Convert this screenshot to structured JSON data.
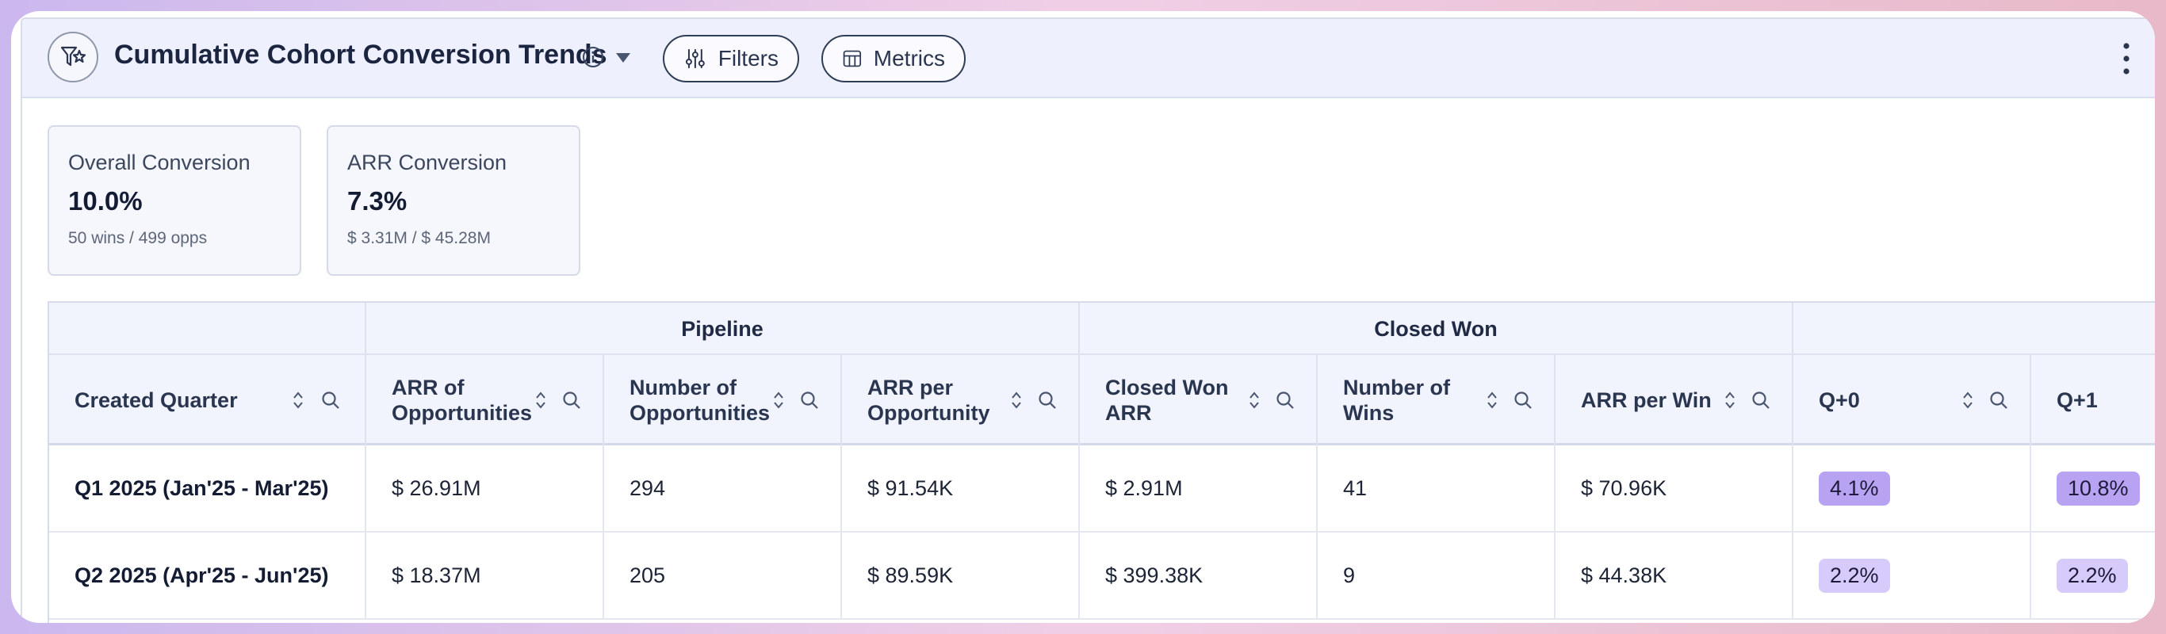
{
  "header": {
    "title": "Cumulative Cohort Conversion Trends",
    "filters_label": "Filters",
    "metrics_label": "Metrics"
  },
  "stats": [
    {
      "label": "Overall Conversion",
      "value": "10.0%",
      "sub": "50 wins / 499 opps"
    },
    {
      "label": "ARR Conversion",
      "value": "7.3%",
      "sub": "$ 3.31M / $ 45.28M"
    }
  ],
  "table": {
    "groups": {
      "pipeline": "Pipeline",
      "closed_won": "Closed Won"
    },
    "columns": [
      {
        "line1": "Created Quarter",
        "line2": ""
      },
      {
        "line1": "ARR of",
        "line2": "Opportunities"
      },
      {
        "line1": "Number of",
        "line2": "Opportunities"
      },
      {
        "line1": "ARR per",
        "line2": "Opportunity"
      },
      {
        "line1": "Closed Won",
        "line2": "ARR"
      },
      {
        "line1": "Number of",
        "line2": "Wins"
      },
      {
        "line1": "ARR per Win",
        "line2": ""
      },
      {
        "line1": "Q+0",
        "line2": ""
      },
      {
        "line1": "Q+1",
        "line2": ""
      }
    ],
    "rows": [
      {
        "quarter": "Q1 2025 (Jan'25 - Mar'25)",
        "arr_opps": "$ 26.91M",
        "num_opps": "294",
        "arr_per_opp": "$ 91.54K",
        "cw_arr": "$ 2.91M",
        "wins": "41",
        "arr_per_win": "$ 70.96K",
        "q0": "4.1%",
        "q1": "10.8%"
      },
      {
        "quarter": "Q2 2025 (Apr'25 - Jun'25)",
        "arr_opps": "$ 18.37M",
        "num_opps": "205",
        "arr_per_opp": "$ 89.59K",
        "cw_arr": "$ 399.38K",
        "wins": "9",
        "arr_per_win": "$ 44.38K",
        "q0": "2.2%",
        "q1": "2.2%"
      }
    ]
  },
  "colors": {
    "accent": "#b7a3f2",
    "accent_light": "#d6cbfa",
    "header_bg": "#eef1fd"
  }
}
